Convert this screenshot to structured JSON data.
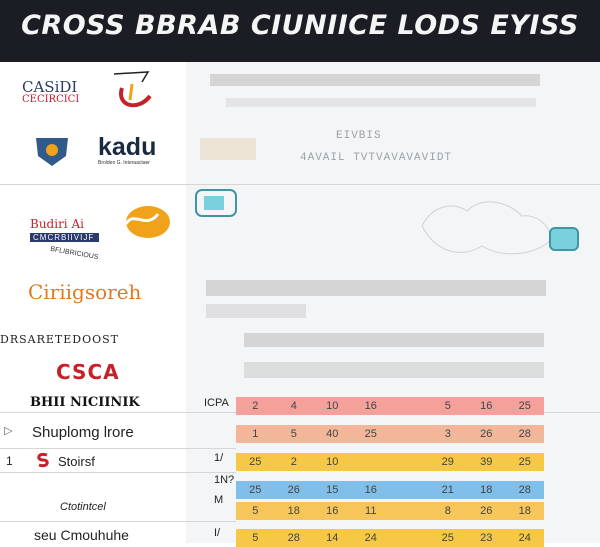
{
  "header": {
    "title": "CROSS BBRAB CIUNIICE LODS EYISS"
  },
  "logos": {
    "l1_top": "CASiDI",
    "l1_sub": "CECIRCICI",
    "l2_name": "kadu",
    "l2_sub": "Brolden G. Interaactaer",
    "l3_top": "Budiri Ai",
    "l3_mid": "CMCRBIIVIJF",
    "l3_bot": "BFLIBRICIOUS",
    "l4": "Ciriigsoreh",
    "l5": "DRSARETEDOOST",
    "l6": "CSCA",
    "l7": "BHII NICIINIK"
  },
  "list": {
    "item1": "Shuplomg lrore",
    "item2": "Stoirsf",
    "item3": "Ctotintcel",
    "item4": "seu Cmouhuhe",
    "num1": "1",
    "side_a": "ICPA",
    "side_b": "1/",
    "side_c": "1N?",
    "side_d": "M",
    "side_e": "I/"
  },
  "faint": {
    "t1": "EIVBIS",
    "t2": "4AVAIL TVTVAVAVAVIDT"
  },
  "rows": [
    {
      "color": "#f3a19a",
      "cells": [
        "2",
        "4",
        "10",
        "16",
        "",
        "5",
        "16",
        "25"
      ]
    },
    {
      "color": "#f2b79a",
      "cells": [
        "1",
        "5",
        "40",
        "25",
        "",
        "3",
        "26",
        "28"
      ]
    },
    {
      "color": "#f6c845",
      "cells": [
        "25",
        "2",
        "10",
        "",
        "",
        "29",
        "39",
        "25"
      ]
    },
    {
      "color": "#7fbfe9",
      "cells": [
        "25",
        "26",
        "15",
        "16",
        "",
        "21",
        "18",
        "28"
      ]
    },
    {
      "color": "#f7c65b",
      "cells": [
        "5",
        "18",
        "16",
        "11",
        "",
        "8",
        "26",
        "18"
      ]
    },
    {
      "color": "#f6c845",
      "cells": [
        "5",
        "28",
        "14",
        "24",
        "",
        "25",
        "23",
        "24"
      ]
    }
  ],
  "colors": {
    "accent_orange": "#f0a21b",
    "accent_red": "#c8202a",
    "navy": "#2a3a6a"
  }
}
